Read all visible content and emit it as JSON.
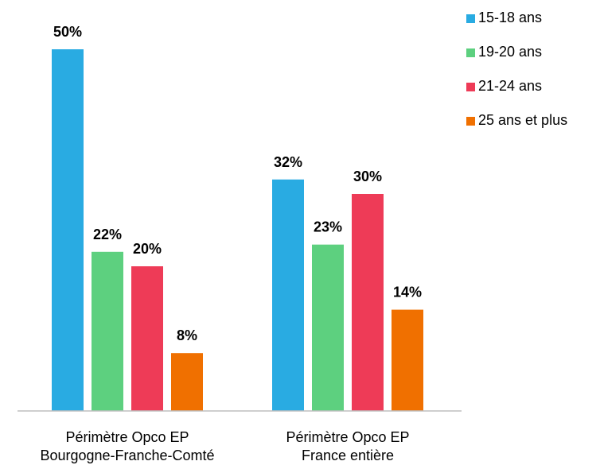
{
  "chart_data": {
    "type": "bar",
    "categories": [
      [
        "Périmètre Opco EP",
        "Bourgogne-Franche-Comté"
      ],
      [
        "Périmètre Opco EP",
        "France entière"
      ]
    ],
    "series": [
      {
        "name": "15-18 ans",
        "color": "#29ABE2",
        "values": [
          50,
          32
        ],
        "labels": [
          "50%",
          "32%"
        ]
      },
      {
        "name": "19-20 ans",
        "color": "#5DD07F",
        "values": [
          22,
          23
        ],
        "labels": [
          "22%",
          "23%"
        ]
      },
      {
        "name": "21-24 ans",
        "color": "#EE3B57",
        "values": [
          20,
          30
        ],
        "labels": [
          "20%",
          "30%"
        ]
      },
      {
        "name": "25 ans et plus",
        "color": "#F07000",
        "values": [
          8,
          14
        ],
        "labels": [
          "8%",
          "14%"
        ]
      }
    ],
    "ylim": [
      0,
      50
    ],
    "unit": "%",
    "grid": false,
    "legend_position": "top-right"
  }
}
